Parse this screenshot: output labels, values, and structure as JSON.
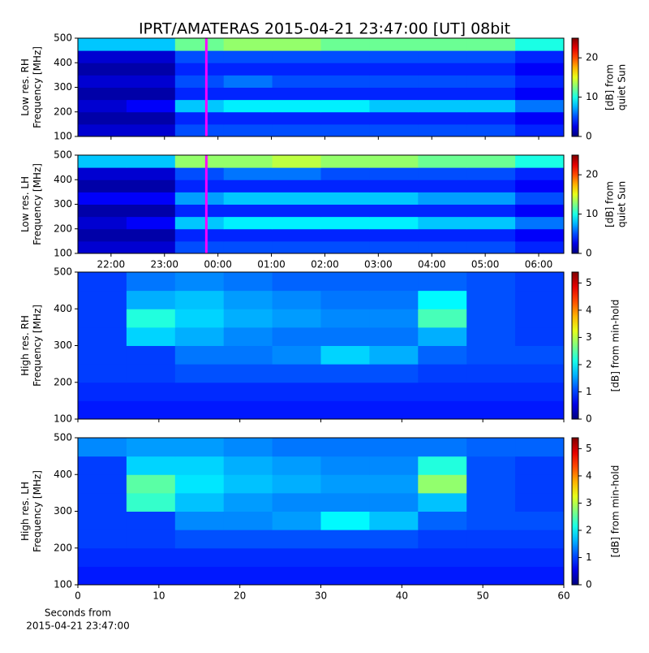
{
  "title": "IPRT/AMATERAS 2015-04-21 23:47:00 [UT]   08bit",
  "chart_data": [
    {
      "type": "heatmap",
      "ylabel": [
        "Low res. RH",
        "Frequency [MHz]"
      ],
      "ylim": [
        100,
        500
      ],
      "yticks": [
        100,
        200,
        300,
        400,
        500
      ],
      "xlim": [
        21.38,
        30.47
      ],
      "xticks": [
        22,
        23,
        24,
        25,
        26,
        27,
        28,
        29,
        30
      ],
      "show_xticklabels": false,
      "marker_x": 23.783,
      "marker_color": "#ff00ff",
      "colormap": "jet",
      "colorbar": {
        "label": [
          "[dB] from",
          "quiet Sun"
        ],
        "lim": [
          0,
          25
        ],
        "ticks": [
          0,
          10,
          20
        ]
      },
      "z": [
        [
          2,
          2,
          5,
          5,
          5,
          5,
          5,
          5,
          5,
          4
        ],
        [
          1,
          1,
          4,
          4,
          4,
          4,
          4,
          4,
          4,
          3
        ],
        [
          2,
          3,
          8,
          9,
          9,
          9,
          8,
          8,
          8,
          6
        ],
        [
          1,
          1,
          4,
          4,
          4,
          4,
          4,
          4,
          4,
          3
        ],
        [
          2,
          2,
          5,
          6,
          5,
          5,
          5,
          5,
          5,
          4
        ],
        [
          1,
          1,
          4,
          4,
          4,
          4,
          4,
          4,
          4,
          3
        ],
        [
          2,
          2,
          5,
          5,
          5,
          5,
          5,
          5,
          5,
          4
        ],
        [
          8,
          8,
          12,
          13,
          13,
          12,
          12,
          12,
          12,
          10
        ]
      ]
    },
    {
      "type": "heatmap",
      "ylabel": [
        "Low res. LH",
        "Frequency [MHz]"
      ],
      "ylim": [
        100,
        500
      ],
      "yticks": [
        100,
        200,
        300,
        400,
        500
      ],
      "xlim": [
        21.38,
        30.47
      ],
      "xticks": [
        {
          "value": 22,
          "label": "22:00"
        },
        {
          "value": 23,
          "label": "23:00"
        },
        {
          "value": 24,
          "label": "00:00"
        },
        {
          "value": 25,
          "label": "01:00"
        },
        {
          "value": 26,
          "label": "02:00"
        },
        {
          "value": 27,
          "label": "03:00"
        },
        {
          "value": 28,
          "label": "04:00"
        },
        {
          "value": 29,
          "label": "05:00"
        },
        {
          "value": 30,
          "label": "06:00"
        }
      ],
      "marker_x": 23.783,
      "marker_color": "#ff00ff",
      "colormap": "jet",
      "colorbar": {
        "label": [
          "[dB] from",
          "quiet Sun"
        ],
        "lim": [
          0,
          25
        ],
        "ticks": [
          0,
          10,
          20
        ]
      },
      "z": [
        [
          2,
          2,
          5,
          5,
          5,
          5,
          5,
          5,
          5,
          4
        ],
        [
          1,
          1,
          4,
          4,
          4,
          4,
          4,
          4,
          4,
          3
        ],
        [
          2,
          3,
          8,
          9,
          9,
          9,
          9,
          8,
          8,
          6
        ],
        [
          1,
          1,
          4,
          4,
          4,
          4,
          4,
          4,
          4,
          3
        ],
        [
          3,
          3,
          7,
          8,
          8,
          8,
          8,
          7,
          7,
          5
        ],
        [
          1,
          1,
          4,
          4,
          4,
          4,
          4,
          4,
          4,
          3
        ],
        [
          2,
          2,
          5,
          6,
          6,
          5,
          5,
          5,
          5,
          4
        ],
        [
          8,
          8,
          13,
          13,
          14,
          13,
          13,
          12,
          12,
          10
        ]
      ]
    },
    {
      "type": "heatmap",
      "ylabel": [
        "High res. RH",
        "Frequency [MHz]"
      ],
      "ylim": [
        100,
        500
      ],
      "yticks": [
        100,
        200,
        300,
        400,
        500
      ],
      "xlim": [
        0,
        60
      ],
      "xticks": [
        0,
        10,
        20,
        30,
        40,
        50,
        60
      ],
      "show_xticklabels": false,
      "colormap": "jet",
      "colorbar": {
        "label": [
          "[dB] from min-hold"
        ],
        "lim": [
          0,
          5.4
        ],
        "ticks": [
          0,
          1,
          2,
          3,
          4,
          5
        ]
      },
      "z": [
        [
          0.8,
          0.8,
          0.8,
          0.8,
          0.8,
          0.8,
          0.8,
          0.8,
          0.8,
          0.8
        ],
        [
          0.9,
          0.9,
          0.9,
          0.9,
          0.9,
          0.9,
          0.9,
          0.9,
          0.9,
          0.9
        ],
        [
          1,
          1,
          1.1,
          1.1,
          1.1,
          1.1,
          1.1,
          1,
          1,
          1
        ],
        [
          1,
          1,
          1.3,
          1.3,
          1.4,
          1.8,
          1.6,
          1.2,
          1.1,
          1.1
        ],
        [
          1,
          1.8,
          1.6,
          1.4,
          1.3,
          1.3,
          1.3,
          1.6,
          1.1,
          1
        ],
        [
          1,
          2.2,
          1.8,
          1.6,
          1.5,
          1.4,
          1.4,
          2.4,
          1.1,
          1
        ],
        [
          1,
          1.6,
          1.7,
          1.5,
          1.4,
          1.3,
          1.3,
          2,
          1.1,
          1
        ],
        [
          1,
          1.3,
          1.4,
          1.3,
          1.2,
          1.2,
          1.2,
          1.2,
          1.1,
          1
        ]
      ]
    },
    {
      "type": "heatmap",
      "ylabel": [
        "High res. LH",
        "Frequency [MHz]"
      ],
      "ylim": [
        100,
        500
      ],
      "yticks": [
        100,
        200,
        300,
        400,
        500
      ],
      "xlim": [
        0,
        60
      ],
      "xticks": [
        0,
        10,
        20,
        30,
        40,
        50,
        60
      ],
      "show_xticklabels": true,
      "xlabel": [
        "Seconds from",
        "2015-04-21 23:47:00"
      ],
      "colormap": "jet",
      "colorbar": {
        "label": [
          "[dB] from min-hold"
        ],
        "lim": [
          0,
          5.4
        ],
        "ticks": [
          0,
          1,
          2,
          3,
          4,
          5
        ]
      },
      "z": [
        [
          0.8,
          0.8,
          0.8,
          0.8,
          0.8,
          0.8,
          0.8,
          0.8,
          0.8,
          0.8
        ],
        [
          0.9,
          0.9,
          0.9,
          0.9,
          0.9,
          0.9,
          0.9,
          0.9,
          0.9,
          0.9
        ],
        [
          1,
          1,
          1.1,
          1.1,
          1.1,
          1.1,
          1.1,
          1,
          1,
          1
        ],
        [
          1,
          1,
          1.4,
          1.4,
          1.5,
          2,
          1.7,
          1.2,
          1.1,
          1.1
        ],
        [
          1,
          2.3,
          1.7,
          1.5,
          1.4,
          1.4,
          1.4,
          1.7,
          1.1,
          1
        ],
        [
          1,
          2.5,
          1.9,
          1.7,
          1.6,
          1.5,
          1.5,
          2.8,
          1.1,
          1
        ],
        [
          1,
          1.8,
          1.8,
          1.6,
          1.5,
          1.4,
          1.4,
          2.2,
          1.1,
          1
        ],
        [
          1.4,
          1.5,
          1.5,
          1.4,
          1.3,
          1.3,
          1.3,
          1.3,
          1.2,
          1.2
        ]
      ]
    }
  ]
}
